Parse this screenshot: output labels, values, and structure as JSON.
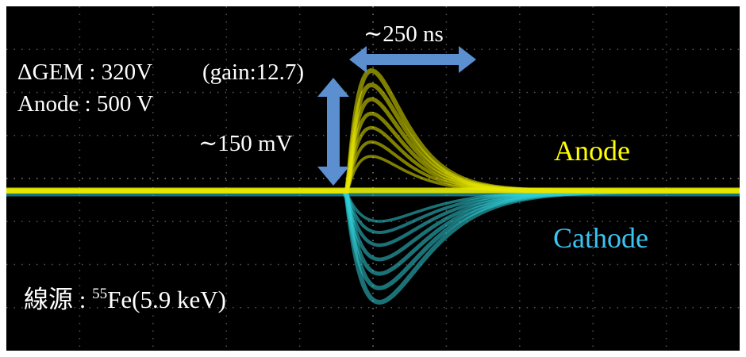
{
  "annotations": {
    "time_width": "∼250 ns",
    "gem_voltage": "ΔGEM : 320V",
    "gain": "(gain:12.7)",
    "anode_voltage": "Anode : 500 V",
    "amplitude": "∼150 mV",
    "anode_label": "Anode",
    "cathode_label": "Cathode",
    "source_prefix": "線源 : ",
    "source_mass": "55",
    "source_rest": "Fe(5.9 keV)"
  }
}
